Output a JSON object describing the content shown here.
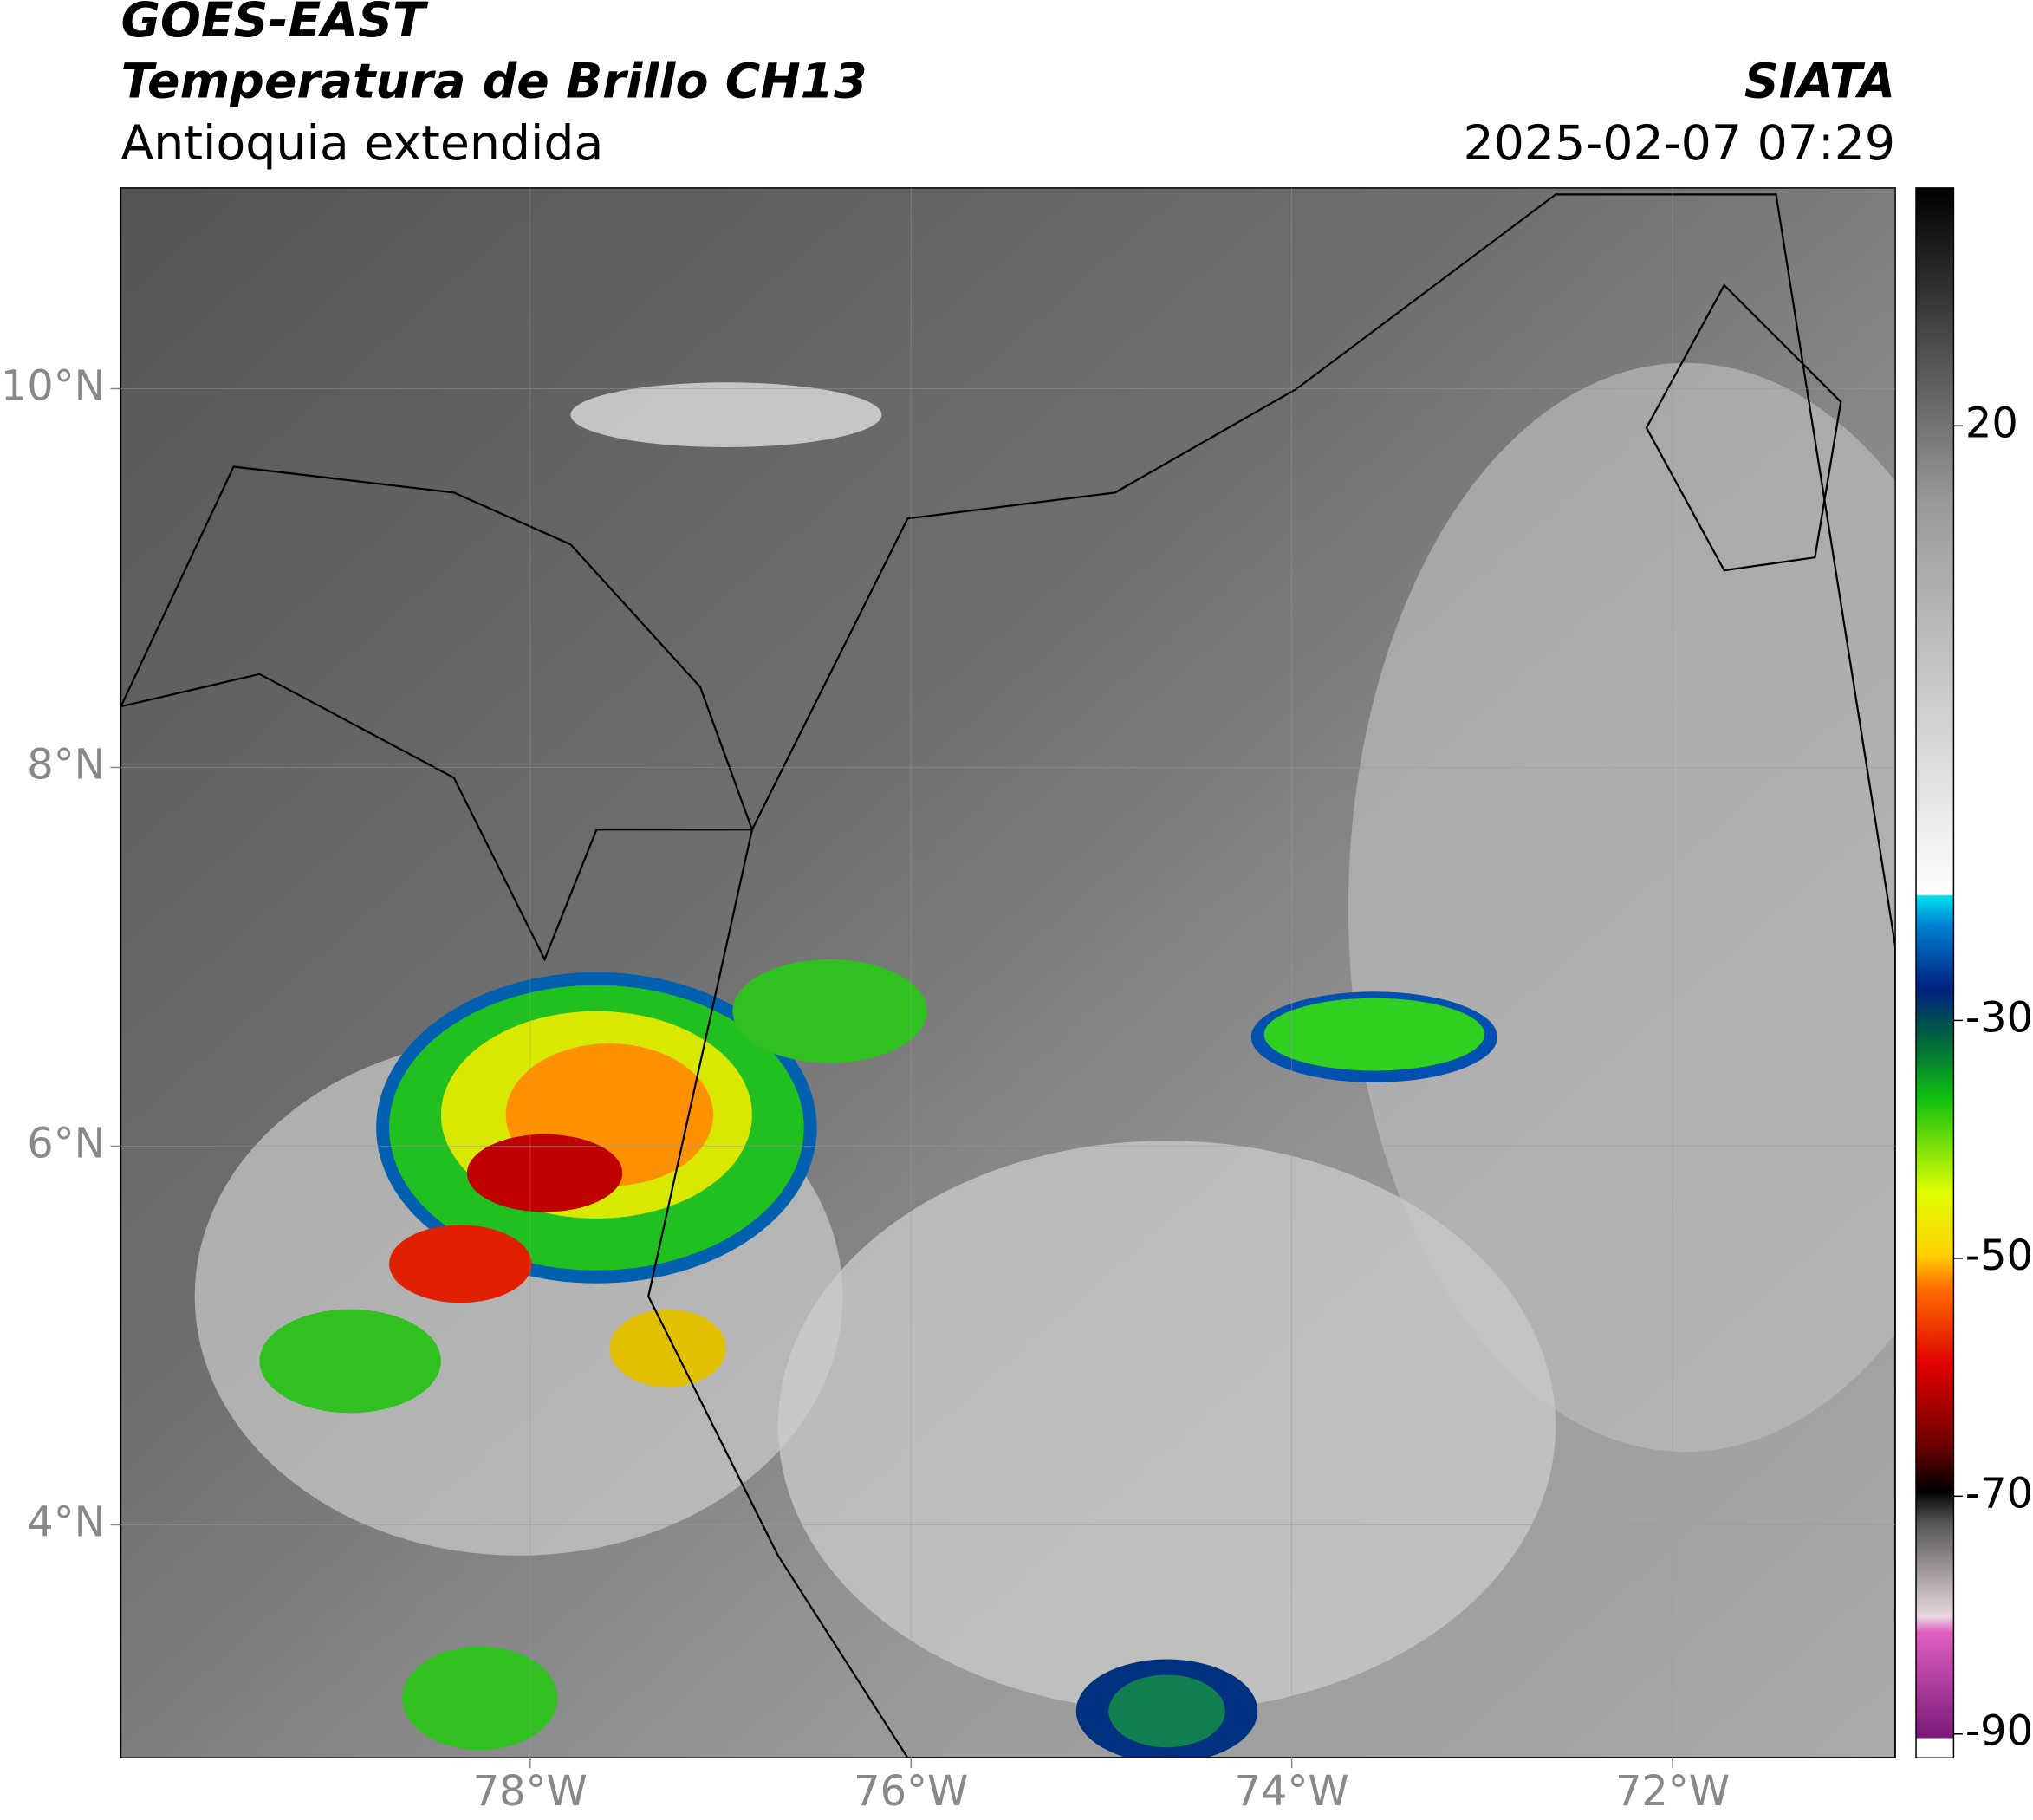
{
  "header": {
    "title": "GOES-EAST",
    "subtitle": "Temperatura de Brillo CH13",
    "region": "Antioquia extendida",
    "agency": "SIATA",
    "datetime": "2025-02-07 07:29"
  },
  "map": {
    "xlim": [
      -80.15,
      -70.83
    ],
    "ylim": [
      2.77,
      11.06
    ],
    "xticks": [
      {
        "value": -78,
        "label": "78°W"
      },
      {
        "value": -76,
        "label": "76°W"
      },
      {
        "value": -74,
        "label": "74°W"
      },
      {
        "value": -72,
        "label": "72°W"
      }
    ],
    "yticks": [
      {
        "value": 10,
        "label": "10°N"
      },
      {
        "value": 8,
        "label": "8°N"
      },
      {
        "value": 6,
        "label": "6°N"
      },
      {
        "value": 4,
        "label": "4°N"
      }
    ]
  },
  "colorbar": {
    "lim": [
      -92,
      40
    ],
    "ticks": [
      20,
      -30,
      -50,
      -70,
      -90
    ]
  }
}
